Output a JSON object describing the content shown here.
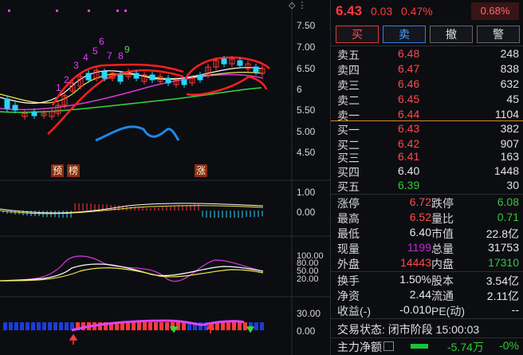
{
  "chart": {
    "price_axis": [
      "7.50",
      "7.00",
      "6.50",
      "6",
      "5.50",
      "5.00",
      "4.50"
    ],
    "macd_axis": [
      "1.00",
      "0.00"
    ],
    "kdj_axis": [
      "100.00",
      "80.00",
      "50.00",
      "20.00"
    ],
    "ind_axis": [
      "30.00",
      "0.00"
    ],
    "tags": {
      "yu": "预",
      "bang": "榜",
      "zhang": "涨"
    },
    "wave_labels": [
      "1",
      "2",
      "3",
      "4",
      "5",
      "6",
      "7",
      "8",
      "9"
    ],
    "colors": {
      "up": "#ff3b3b",
      "down": "#2ad4ff",
      "ma_white": "#ffffff",
      "ma_yellow": "#e8e84a",
      "ma_magenta": "#d83adc",
      "ma_green": "#38d838",
      "band_red": "#ff2020",
      "band_blue": "#1e88e5",
      "wave_magenta": "#e040fb",
      "wave_green": "#40e040"
    }
  },
  "quote": {
    "price": "6.43",
    "change": "0.03",
    "change_pct": "0.47%",
    "boxed_pct": "0.68%",
    "buttons": [
      "买",
      "卖",
      "撤",
      "警"
    ],
    "sell_orders": [
      {
        "label": "卖五",
        "price": "6.48",
        "vol": "248"
      },
      {
        "label": "卖四",
        "price": "6.47",
        "vol": "838"
      },
      {
        "label": "卖三",
        "price": "6.46",
        "vol": "632"
      },
      {
        "label": "卖二",
        "price": "6.45",
        "vol": "45"
      },
      {
        "label": "卖一",
        "price": "6.44",
        "vol": "1104"
      }
    ],
    "buy_orders": [
      {
        "label": "买一",
        "price": "6.43",
        "vol": "382"
      },
      {
        "label": "买二",
        "price": "6.42",
        "vol": "907"
      },
      {
        "label": "买三",
        "price": "6.41",
        "vol": "163"
      },
      {
        "label": "买四",
        "price": "6.40",
        "vol": "1448"
      },
      {
        "label": "买五",
        "price": "6.39",
        "vol": "30"
      }
    ],
    "stats": {
      "zhangting_l": "涨停",
      "zhangting_v": "6.72",
      "dieting_l": "跌停",
      "dieting_v": "6.08",
      "zuigao_l": "最高",
      "zuigao_v": "6.52",
      "liangbi_l": "量比",
      "liangbi_v": "0.71",
      "zuidi_l": "最低",
      "zuidi_v": "6.40",
      "shizhi_l": "市值",
      "shizhi_v": "22.8亿",
      "xianliang_l": "现量",
      "xianliang_v": "1199",
      "zongliang_l": "总量",
      "zongliang_v": "31753",
      "waipan_l": "外盘",
      "waipan_v": "14443",
      "neipan_l": "内盘",
      "neipan_v": "17310",
      "huanshou_l": "换手",
      "huanshou_v": "1.50%",
      "guben_l": "股本",
      "guben_v": "3.54亿",
      "jingzi_l": "净资",
      "jingzi_v": "2.44",
      "liutong_l": "流通",
      "liutong_v": "2.11亿",
      "shouyi_l": "收益(-)",
      "shouyi_v": "-0.010",
      "pe_l": "PE(动)",
      "pe_v": "--"
    },
    "trade_state": "交易状态: 闭市阶段 15:00:03",
    "flow": {
      "label": "主力净额",
      "value": "-5.74万",
      "pct": "-0%"
    }
  }
}
